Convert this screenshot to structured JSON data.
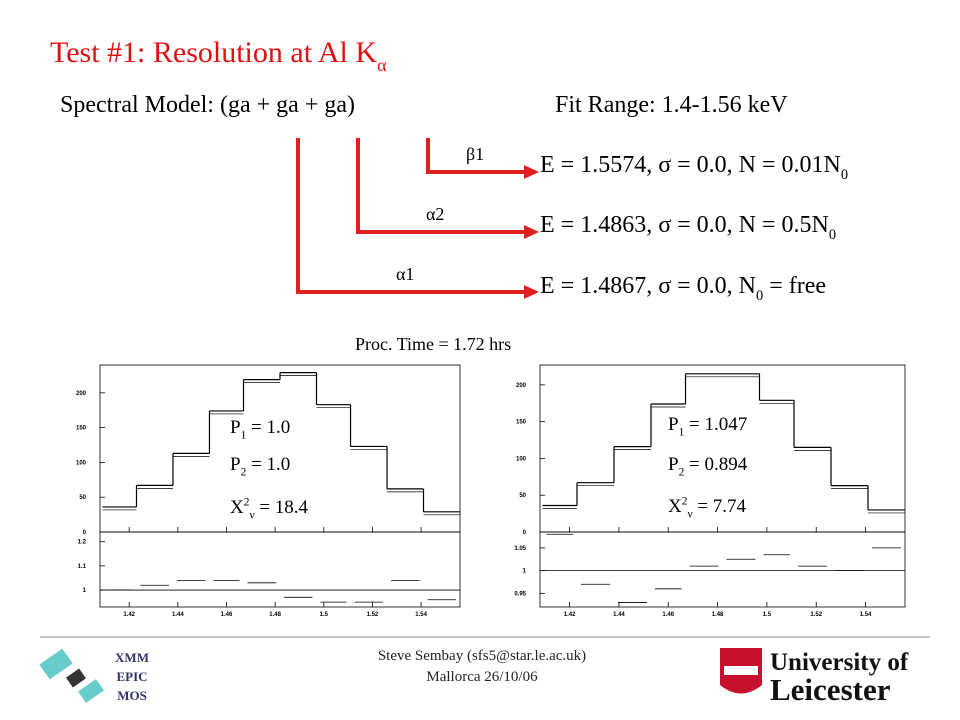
{
  "slide": {
    "title": {
      "text": "Test #1: Resolution  at Al K",
      "sub": "α"
    },
    "model": "Spectral Model: (ga + ga + ga)",
    "fit_range": "Fit Range: 1.4-1.56 keV",
    "labels": [
      "β1",
      "α2",
      "α1"
    ],
    "lines": [
      {
        "text": "E = 1.5574, σ = 0.0, N = 0.01N",
        "sub": "0",
        "rest": ""
      },
      {
        "text": "E = 1.4863, σ = 0.0, N = 0.5N",
        "sub": "0",
        "rest": ""
      },
      {
        "text": "E = 1.4867, σ = 0.0, N",
        "sub": "0",
        "rest": " =  free"
      }
    ],
    "proc_time": "Proc. Time = 1.72 hrs",
    "footer": {
      "logo": [
        "XMM",
        "EPIC",
        "MOS"
      ],
      "author": "Steve Sembay (sfs5@star.le.ac.uk)",
      "place": "Mallorca 26/10/06",
      "university": [
        "University of",
        "Leicester"
      ]
    }
  },
  "chart_data": [
    {
      "type": "histogram",
      "bins": [
        1.409,
        1.423,
        1.438,
        1.453,
        1.467,
        1.482,
        1.497,
        1.511,
        1.526,
        1.541,
        1.556
      ],
      "values": [
        36,
        67,
        113,
        174,
        219,
        229,
        183,
        123,
        62,
        29
      ],
      "xlim": [
        1.408,
        1.556
      ],
      "xticks": [
        1.42,
        1.44,
        1.46,
        1.48,
        1.5,
        1.52,
        1.54
      ],
      "ylim": [
        0,
        240
      ],
      "yticks": [
        0,
        50,
        100,
        150,
        200
      ],
      "ratio": {
        "values": [
          1.0,
          1.02,
          1.04,
          1.04,
          1.03,
          0.97,
          0.95,
          0.95,
          1.04,
          0.96
        ],
        "ylim": [
          0.93,
          1.24
        ],
        "yticks": [
          1,
          1.1,
          1.2
        ]
      },
      "annotations": [
        {
          "text": "P",
          "sub": "1",
          "rest": " = 1.0"
        },
        {
          "text": "P",
          "sub": "2",
          "rest": " = 1.0"
        },
        {
          "text": "X",
          "sup": "2",
          "sub": "ν",
          "rest": " = 18.4"
        }
      ]
    },
    {
      "type": "histogram",
      "bins": [
        1.409,
        1.423,
        1.438,
        1.453,
        1.467,
        1.482,
        1.497,
        1.511,
        1.526,
        1.541,
        1.556
      ],
      "values": [
        36,
        67,
        116,
        174,
        215,
        215,
        179,
        115,
        63,
        30
      ],
      "xlim": [
        1.408,
        1.556
      ],
      "xticks": [
        1.42,
        1.44,
        1.46,
        1.48,
        1.5,
        1.52,
        1.54
      ],
      "ylim": [
        0,
        227
      ],
      "yticks": [
        0,
        50,
        100,
        150,
        200
      ],
      "ratio": {
        "values": [
          1.08,
          0.97,
          0.93,
          0.96,
          1.01,
          1.025,
          1.035,
          1.01,
          1.0,
          1.05
        ],
        "ylim": [
          0.92,
          1.085
        ],
        "yticks": [
          0.95,
          1,
          1.05
        ]
      },
      "annotations": [
        {
          "text": "P",
          "sub": "1",
          "rest": " = 1.047"
        },
        {
          "text": "P",
          "sub": "2",
          "rest": " = 0.894"
        },
        {
          "text": "X",
          "sup": "2",
          "sub": "ν",
          "rest": " = 7.74"
        }
      ]
    }
  ]
}
